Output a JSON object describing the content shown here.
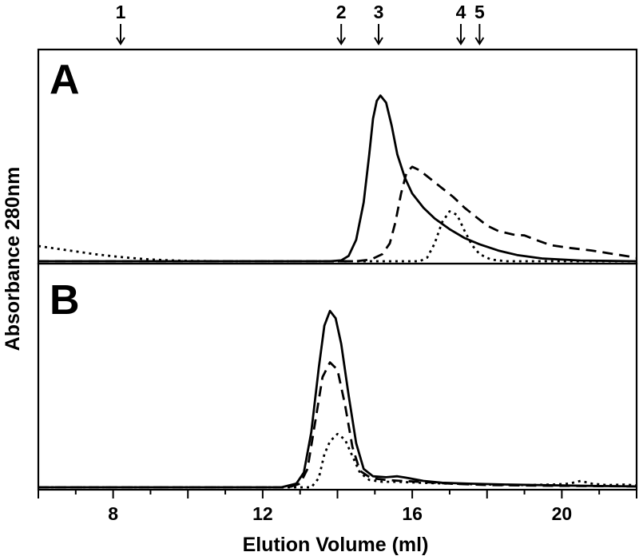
{
  "chart_data": {
    "type": "line",
    "xlabel": "Elution Volume (ml)",
    "ylabel": "Absorbance 280nm",
    "xlim": [
      6,
      22
    ],
    "xticks": [
      8,
      12,
      16,
      20
    ],
    "markers": [
      {
        "label": "1",
        "x": 8.2
      },
      {
        "label": "2",
        "x": 14.1
      },
      {
        "label": "3",
        "x": 15.1
      },
      {
        "label": "4",
        "x": 17.3
      },
      {
        "label": "5",
        "x": 17.8
      }
    ],
    "panels": [
      {
        "label": "A",
        "ylim": [
          0,
          1
        ],
        "series": [
          {
            "style": "solid",
            "points": [
              [
                6,
                0
              ],
              [
                13.8,
                0
              ],
              [
                14.1,
                0.005
              ],
              [
                14.3,
                0.03
              ],
              [
                14.5,
                0.12
              ],
              [
                14.7,
                0.33
              ],
              [
                14.85,
                0.6
              ],
              [
                14.95,
                0.8
              ],
              [
                15.05,
                0.9
              ],
              [
                15.15,
                0.93
              ],
              [
                15.3,
                0.89
              ],
              [
                15.45,
                0.76
              ],
              [
                15.6,
                0.6
              ],
              [
                15.8,
                0.47
              ],
              [
                16.0,
                0.38
              ],
              [
                16.3,
                0.3
              ],
              [
                16.6,
                0.24
              ],
              [
                17.0,
                0.18
              ],
              [
                17.4,
                0.13
              ],
              [
                17.8,
                0.095
              ],
              [
                18.3,
                0.06
              ],
              [
                18.8,
                0.035
              ],
              [
                19.5,
                0.015
              ],
              [
                20.5,
                0.004
              ],
              [
                22,
                0
              ]
            ]
          },
          {
            "style": "dashed",
            "points": [
              [
                6,
                0
              ],
              [
                14.5,
                0
              ],
              [
                14.9,
                0.01
              ],
              [
                15.2,
                0.04
              ],
              [
                15.4,
                0.1
              ],
              [
                15.55,
                0.22
              ],
              [
                15.7,
                0.38
              ],
              [
                15.85,
                0.5
              ],
              [
                16.0,
                0.53
              ],
              [
                16.2,
                0.51
              ],
              [
                16.5,
                0.46
              ],
              [
                16.8,
                0.41
              ],
              [
                17.1,
                0.36
              ],
              [
                17.4,
                0.3
              ],
              [
                17.7,
                0.25
              ],
              [
                18.0,
                0.2
              ],
              [
                18.3,
                0.17
              ],
              [
                18.7,
                0.15
              ],
              [
                19.0,
                0.145
              ],
              [
                19.3,
                0.12
              ],
              [
                19.7,
                0.09
              ],
              [
                20.2,
                0.075
              ],
              [
                20.8,
                0.06
              ],
              [
                21.4,
                0.04
              ],
              [
                22,
                0.02
              ]
            ]
          },
          {
            "style": "dotted",
            "points": [
              [
                6,
                0.085
              ],
              [
                6.5,
                0.07
              ],
              [
                7,
                0.055
              ],
              [
                7.5,
                0.04
              ],
              [
                8,
                0.028
              ],
              [
                8.5,
                0.018
              ],
              [
                9,
                0.01
              ],
              [
                9.5,
                0.005
              ],
              [
                10,
                0.002
              ],
              [
                11,
                0
              ],
              [
                16.2,
                0
              ],
              [
                16.4,
                0.02
              ],
              [
                16.6,
                0.1
              ],
              [
                16.8,
                0.22
              ],
              [
                17.0,
                0.28
              ],
              [
                17.2,
                0.26
              ],
              [
                17.4,
                0.17
              ],
              [
                17.6,
                0.09
              ],
              [
                17.8,
                0.04
              ],
              [
                18.1,
                0.01
              ],
              [
                18.5,
                0
              ],
              [
                22,
                0
              ]
            ]
          }
        ]
      },
      {
        "label": "B",
        "ylim": [
          0,
          1
        ],
        "series": [
          {
            "style": "solid",
            "points": [
              [
                6,
                0
              ],
              [
                12.5,
                0
              ],
              [
                12.9,
                0.02
              ],
              [
                13.1,
                0.08
              ],
              [
                13.3,
                0.3
              ],
              [
                13.5,
                0.65
              ],
              [
                13.65,
                0.88
              ],
              [
                13.8,
                0.96
              ],
              [
                13.95,
                0.92
              ],
              [
                14.1,
                0.78
              ],
              [
                14.3,
                0.5
              ],
              [
                14.5,
                0.24
              ],
              [
                14.7,
                0.1
              ],
              [
                14.95,
                0.06
              ],
              [
                15.3,
                0.055
              ],
              [
                15.6,
                0.06
              ],
              [
                15.9,
                0.05
              ],
              [
                16.3,
                0.035
              ],
              [
                16.8,
                0.025
              ],
              [
                17.5,
                0.02
              ],
              [
                18.5,
                0.015
              ],
              [
                20,
                0.01
              ],
              [
                21,
                0.007
              ],
              [
                22,
                0.005
              ]
            ]
          },
          {
            "style": "dashed",
            "points": [
              [
                6,
                0
              ],
              [
                12.7,
                0
              ],
              [
                13.0,
                0.02
              ],
              [
                13.2,
                0.1
              ],
              [
                13.4,
                0.35
              ],
              [
                13.6,
                0.6
              ],
              [
                13.8,
                0.68
              ],
              [
                14.0,
                0.64
              ],
              [
                14.2,
                0.45
              ],
              [
                14.4,
                0.22
              ],
              [
                14.6,
                0.09
              ],
              [
                14.9,
                0.05
              ],
              [
                15.3,
                0.04
              ],
              [
                15.7,
                0.035
              ],
              [
                16.2,
                0.03
              ],
              [
                17,
                0.02
              ],
              [
                18,
                0.012
              ],
              [
                20,
                0.008
              ],
              [
                22,
                0.005
              ]
            ]
          },
          {
            "style": "dotted",
            "points": [
              [
                6,
                0
              ],
              [
                13.3,
                0
              ],
              [
                13.5,
                0.05
              ],
              [
                13.65,
                0.18
              ],
              [
                13.8,
                0.25
              ],
              [
                14.0,
                0.29
              ],
              [
                14.2,
                0.26
              ],
              [
                14.4,
                0.17
              ],
              [
                14.6,
                0.08
              ],
              [
                14.85,
                0.04
              ],
              [
                15.2,
                0.03
              ],
              [
                15.6,
                0.03
              ],
              [
                16.2,
                0.025
              ],
              [
                17,
                0.02
              ],
              [
                18,
                0.015
              ],
              [
                19,
                0.012
              ],
              [
                19.8,
                0.015
              ],
              [
                20.2,
                0.02
              ],
              [
                20.5,
                0.035
              ],
              [
                20.8,
                0.02
              ],
              [
                21.2,
                0.012
              ],
              [
                21.7,
                0.015
              ],
              [
                22,
                0.01
              ]
            ]
          }
        ]
      }
    ]
  }
}
